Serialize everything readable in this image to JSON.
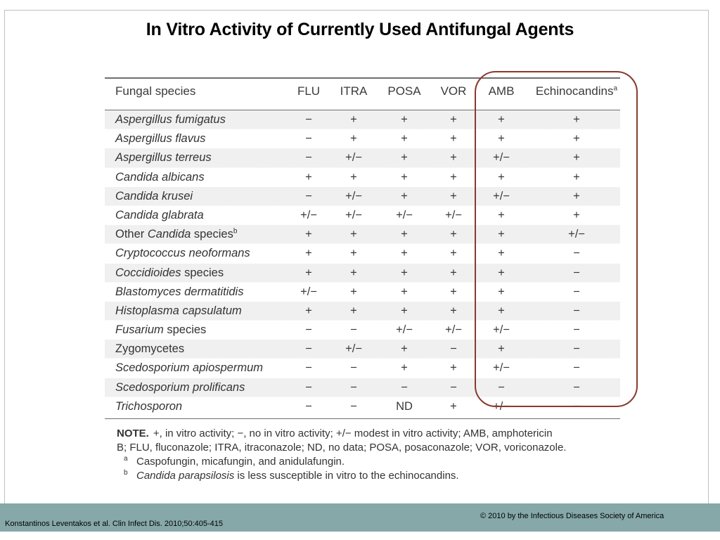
{
  "title": "In Vitro Activity of Currently Used Antifungal Agents",
  "table": {
    "headers": {
      "species": "Fungal species",
      "flu": "FLU",
      "itra": "ITRA",
      "posa": "POSA",
      "vor": "VOR",
      "amb": "AMB",
      "echino": "Echinocandins",
      "echino_sup": "a"
    },
    "rows": [
      {
        "species": "Aspergillus fumigatus",
        "flu": "−",
        "itra": "+",
        "posa": "+",
        "vor": "+",
        "amb": "+",
        "echino": "+"
      },
      {
        "species": "Aspergillus flavus",
        "flu": "−",
        "itra": "+",
        "posa": "+",
        "vor": "+",
        "amb": "+",
        "echino": "+"
      },
      {
        "species": "Aspergillus terreus",
        "flu": "−",
        "itra": "+/−",
        "posa": "+",
        "vor": "+",
        "amb": "+/−",
        "echino": "+"
      },
      {
        "species": "Candida albicans",
        "flu": "+",
        "itra": "+",
        "posa": "+",
        "vor": "+",
        "amb": "+",
        "echino": "+"
      },
      {
        "species": "Candida krusei",
        "flu": "−",
        "itra": "+/−",
        "posa": "+",
        "vor": "+",
        "amb": "+/−",
        "echino": "+"
      },
      {
        "species": "Candida glabrata",
        "flu": "+/−",
        "itra": "+/−",
        "posa": "+/−",
        "vor": "+/−",
        "amb": "+",
        "echino": "+"
      },
      {
        "species_plain1": "Other ",
        "species_italic": "Candida",
        "species_plain2": " species",
        "species_sup": "b",
        "flu": "+",
        "itra": "+",
        "posa": "+",
        "vor": "+",
        "amb": "+",
        "echino": "+/−"
      },
      {
        "species": "Cryptococcus neoformans",
        "flu": "+",
        "itra": "+",
        "posa": "+",
        "vor": "+",
        "amb": "+",
        "echino": "−"
      },
      {
        "species_italic": "Coccidioides",
        "species_plain2": " species",
        "flu": "+",
        "itra": "+",
        "posa": "+",
        "vor": "+",
        "amb": "+",
        "echino": "−"
      },
      {
        "species": "Blastomyces dermatitidis",
        "flu": "+/−",
        "itra": "+",
        "posa": "+",
        "vor": "+",
        "amb": "+",
        "echino": "−"
      },
      {
        "species": "Histoplasma capsulatum",
        "flu": "+",
        "itra": "+",
        "posa": "+",
        "vor": "+",
        "amb": "+",
        "echino": "−"
      },
      {
        "species_italic": "Fusarium",
        "species_plain2": " species",
        "flu": "−",
        "itra": "−",
        "posa": "+/−",
        "vor": "+/−",
        "amb": "+/−",
        "echino": "−"
      },
      {
        "species_plain1": "Zygomycetes",
        "flu": "−",
        "itra": "+/−",
        "posa": "+",
        "vor": "−",
        "amb": "+",
        "echino": "−"
      },
      {
        "species": "Scedosporium apiospermum",
        "flu": "−",
        "itra": "−",
        "posa": "+",
        "vor": "+",
        "amb": "+/−",
        "echino": "−"
      },
      {
        "species": "Scedosporium prolificans",
        "flu": "−",
        "itra": "−",
        "posa": "−",
        "vor": "−",
        "amb": "−",
        "echino": "−"
      },
      {
        "species": "Trichosporon",
        "flu": "−",
        "itra": "−",
        "posa": "ND",
        "vor": "+",
        "amb": "+/−",
        "echino": "−"
      }
    ]
  },
  "notes": {
    "note_label": "NOTE.",
    "note_line1": "+, in vitro activity; −, no in vitro activity; +/− modest in vitro activity; AMB, amphotericin",
    "note_line2": "B; FLU, fluconazole; ITRA, itraconazole; ND, no data; POSA, posaconazole; VOR, voriconazole.",
    "footnote_a_mark": "a",
    "footnote_a": "Caspofungin, micafungin, and anidulafungin.",
    "footnote_b_mark": "b",
    "footnote_b_italic": "Candida parapsilosis",
    "footnote_b_rest": " is less susceptible in vitro to the echinocandins."
  },
  "footer": {
    "citation": "Konstantinos Leventakos et al. Clin Infect Dis. 2010;50:405-415",
    "copyright": "© 2010 by the Infectious Diseases Society of America"
  },
  "colors": {
    "footer_bar": "#86a8a9",
    "highlight_oval": "#8b3a2e",
    "row_shade": "#f0f0f0"
  }
}
